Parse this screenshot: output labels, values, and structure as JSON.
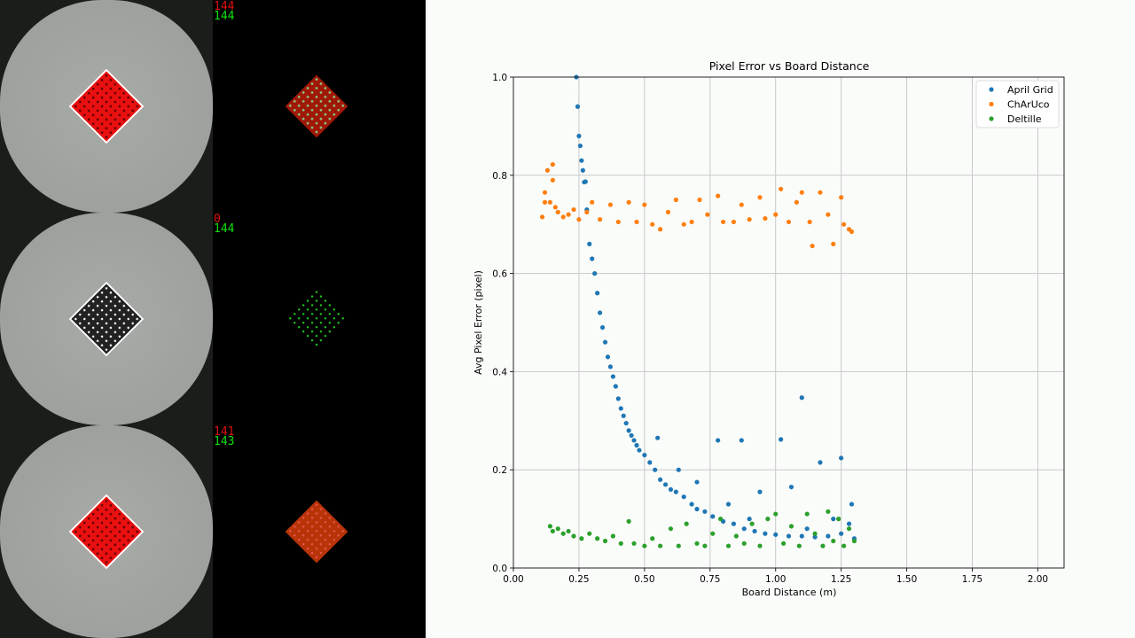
{
  "panels": [
    {
      "detected": "144",
      "total": "144",
      "board_color": "red"
    },
    {
      "detected": "0",
      "total": "144",
      "board_color": "black"
    },
    {
      "detected": "141",
      "total": "143",
      "board_color": "red"
    }
  ],
  "colors": {
    "april": "#1f77b4",
    "charuco": "#ff7f0e",
    "deltille": "#2ca02c",
    "detected_text": "#e01010",
    "total_text": "#10e010"
  },
  "chart_data": {
    "type": "scatter",
    "title": "Pixel Error vs Board Distance",
    "xlabel": "Board Distance (m)",
    "ylabel": "Avg Pixel Error (pixel)",
    "xlim": [
      0,
      2.1
    ],
    "ylim": [
      0,
      1.0
    ],
    "grid": true,
    "legend": "top-right",
    "xticks": [
      "0.00",
      "0.25",
      "0.50",
      "0.75",
      "1.00",
      "1.25",
      "1.50",
      "1.75",
      "2.00"
    ],
    "yticks": [
      "0.0",
      "0.2",
      "0.4",
      "0.6",
      "0.8",
      "1.0"
    ],
    "series": [
      {
        "name": "April Grid",
        "points": [
          [
            0.24,
            1.0
          ],
          [
            0.245,
            0.94
          ],
          [
            0.25,
            0.88
          ],
          [
            0.255,
            0.86
          ],
          [
            0.26,
            0.83
          ],
          [
            0.265,
            0.81
          ],
          [
            0.27,
            0.786
          ],
          [
            0.275,
            0.787
          ],
          [
            0.28,
            0.73
          ],
          [
            0.29,
            0.66
          ],
          [
            0.3,
            0.63
          ],
          [
            0.31,
            0.6
          ],
          [
            0.32,
            0.56
          ],
          [
            0.33,
            0.52
          ],
          [
            0.34,
            0.49
          ],
          [
            0.35,
            0.46
          ],
          [
            0.36,
            0.43
          ],
          [
            0.37,
            0.41
          ],
          [
            0.38,
            0.39
          ],
          [
            0.39,
            0.37
          ],
          [
            0.4,
            0.345
          ],
          [
            0.41,
            0.325
          ],
          [
            0.42,
            0.31
          ],
          [
            0.43,
            0.295
          ],
          [
            0.44,
            0.28
          ],
          [
            0.45,
            0.27
          ],
          [
            0.46,
            0.26
          ],
          [
            0.47,
            0.25
          ],
          [
            0.48,
            0.24
          ],
          [
            0.5,
            0.23
          ],
          [
            0.52,
            0.215
          ],
          [
            0.54,
            0.2
          ],
          [
            0.56,
            0.18
          ],
          [
            0.58,
            0.17
          ],
          [
            0.6,
            0.16
          ],
          [
            0.62,
            0.155
          ],
          [
            0.65,
            0.145
          ],
          [
            0.68,
            0.13
          ],
          [
            0.7,
            0.12
          ],
          [
            0.73,
            0.115
          ],
          [
            0.76,
            0.105
          ],
          [
            0.8,
            0.095
          ],
          [
            0.84,
            0.09
          ],
          [
            0.88,
            0.08
          ],
          [
            0.92,
            0.075
          ],
          [
            0.96,
            0.07
          ],
          [
            1.0,
            0.068
          ],
          [
            1.05,
            0.065
          ],
          [
            1.1,
            0.065
          ],
          [
            1.15,
            0.063
          ],
          [
            1.2,
            0.065
          ],
          [
            1.25,
            0.07
          ],
          [
            1.28,
            0.09
          ],
          [
            1.3,
            0.06
          ],
          [
            0.55,
            0.265
          ],
          [
            0.63,
            0.2
          ],
          [
            0.7,
            0.175
          ],
          [
            0.78,
            0.26
          ],
          [
            0.87,
            0.26
          ],
          [
            1.02,
            0.262
          ],
          [
            1.1,
            0.347
          ],
          [
            1.06,
            0.165
          ],
          [
            1.17,
            0.215
          ],
          [
            1.25,
            0.224
          ],
          [
            0.94,
            0.155
          ],
          [
            1.29,
            0.13
          ],
          [
            0.82,
            0.13
          ],
          [
            0.9,
            0.1
          ],
          [
            1.12,
            0.08
          ],
          [
            1.22,
            0.1
          ]
        ]
      },
      {
        "name": "ChArUco",
        "points": [
          [
            0.11,
            0.715
          ],
          [
            0.12,
            0.765
          ],
          [
            0.12,
            0.745
          ],
          [
            0.13,
            0.81
          ],
          [
            0.14,
            0.745
          ],
          [
            0.15,
            0.822
          ],
          [
            0.15,
            0.79
          ],
          [
            0.16,
            0.735
          ],
          [
            0.17,
            0.725
          ],
          [
            0.19,
            0.715
          ],
          [
            0.21,
            0.72
          ],
          [
            0.23,
            0.73
          ],
          [
            0.25,
            0.71
          ],
          [
            0.28,
            0.725
          ],
          [
            0.3,
            0.745
          ],
          [
            0.33,
            0.71
          ],
          [
            0.37,
            0.74
          ],
          [
            0.4,
            0.705
          ],
          [
            0.44,
            0.745
          ],
          [
            0.47,
            0.705
          ],
          [
            0.5,
            0.74
          ],
          [
            0.53,
            0.7
          ],
          [
            0.56,
            0.69
          ],
          [
            0.59,
            0.725
          ],
          [
            0.62,
            0.75
          ],
          [
            0.65,
            0.7
          ],
          [
            0.68,
            0.705
          ],
          [
            0.71,
            0.75
          ],
          [
            0.74,
            0.72
          ],
          [
            0.78,
            0.758
          ],
          [
            0.8,
            0.705
          ],
          [
            0.84,
            0.705
          ],
          [
            0.87,
            0.74
          ],
          [
            0.9,
            0.71
          ],
          [
            0.94,
            0.755
          ],
          [
            0.96,
            0.712
          ],
          [
            1.0,
            0.72
          ],
          [
            1.02,
            0.772
          ],
          [
            1.05,
            0.705
          ],
          [
            1.08,
            0.745
          ],
          [
            1.1,
            0.765
          ],
          [
            1.13,
            0.705
          ],
          [
            1.14,
            0.656
          ],
          [
            1.17,
            0.765
          ],
          [
            1.2,
            0.72
          ],
          [
            1.22,
            0.66
          ],
          [
            1.25,
            0.755
          ],
          [
            1.26,
            0.7
          ],
          [
            1.28,
            0.69
          ],
          [
            1.29,
            0.685
          ]
        ]
      },
      {
        "name": "Deltille",
        "points": [
          [
            0.14,
            0.085
          ],
          [
            0.15,
            0.075
          ],
          [
            0.17,
            0.08
          ],
          [
            0.19,
            0.07
          ],
          [
            0.21,
            0.075
          ],
          [
            0.23,
            0.065
          ],
          [
            0.26,
            0.06
          ],
          [
            0.29,
            0.07
          ],
          [
            0.32,
            0.06
          ],
          [
            0.35,
            0.055
          ],
          [
            0.38,
            0.065
          ],
          [
            0.41,
            0.05
          ],
          [
            0.44,
            0.095
          ],
          [
            0.46,
            0.05
          ],
          [
            0.5,
            0.045
          ],
          [
            0.53,
            0.06
          ],
          [
            0.56,
            0.045
          ],
          [
            0.6,
            0.08
          ],
          [
            0.63,
            0.045
          ],
          [
            0.66,
            0.09
          ],
          [
            0.7,
            0.05
          ],
          [
            0.73,
            0.045
          ],
          [
            0.76,
            0.07
          ],
          [
            0.79,
            0.1
          ],
          [
            0.82,
            0.045
          ],
          [
            0.85,
            0.065
          ],
          [
            0.88,
            0.05
          ],
          [
            0.91,
            0.09
          ],
          [
            0.94,
            0.045
          ],
          [
            0.97,
            0.1
          ],
          [
            1.0,
            0.11
          ],
          [
            1.03,
            0.05
          ],
          [
            1.06,
            0.085
          ],
          [
            1.09,
            0.045
          ],
          [
            1.12,
            0.11
          ],
          [
            1.15,
            0.07
          ],
          [
            1.18,
            0.045
          ],
          [
            1.2,
            0.115
          ],
          [
            1.22,
            0.055
          ],
          [
            1.24,
            0.1
          ],
          [
            1.26,
            0.045
          ],
          [
            1.28,
            0.08
          ],
          [
            1.3,
            0.055
          ]
        ]
      }
    ]
  }
}
